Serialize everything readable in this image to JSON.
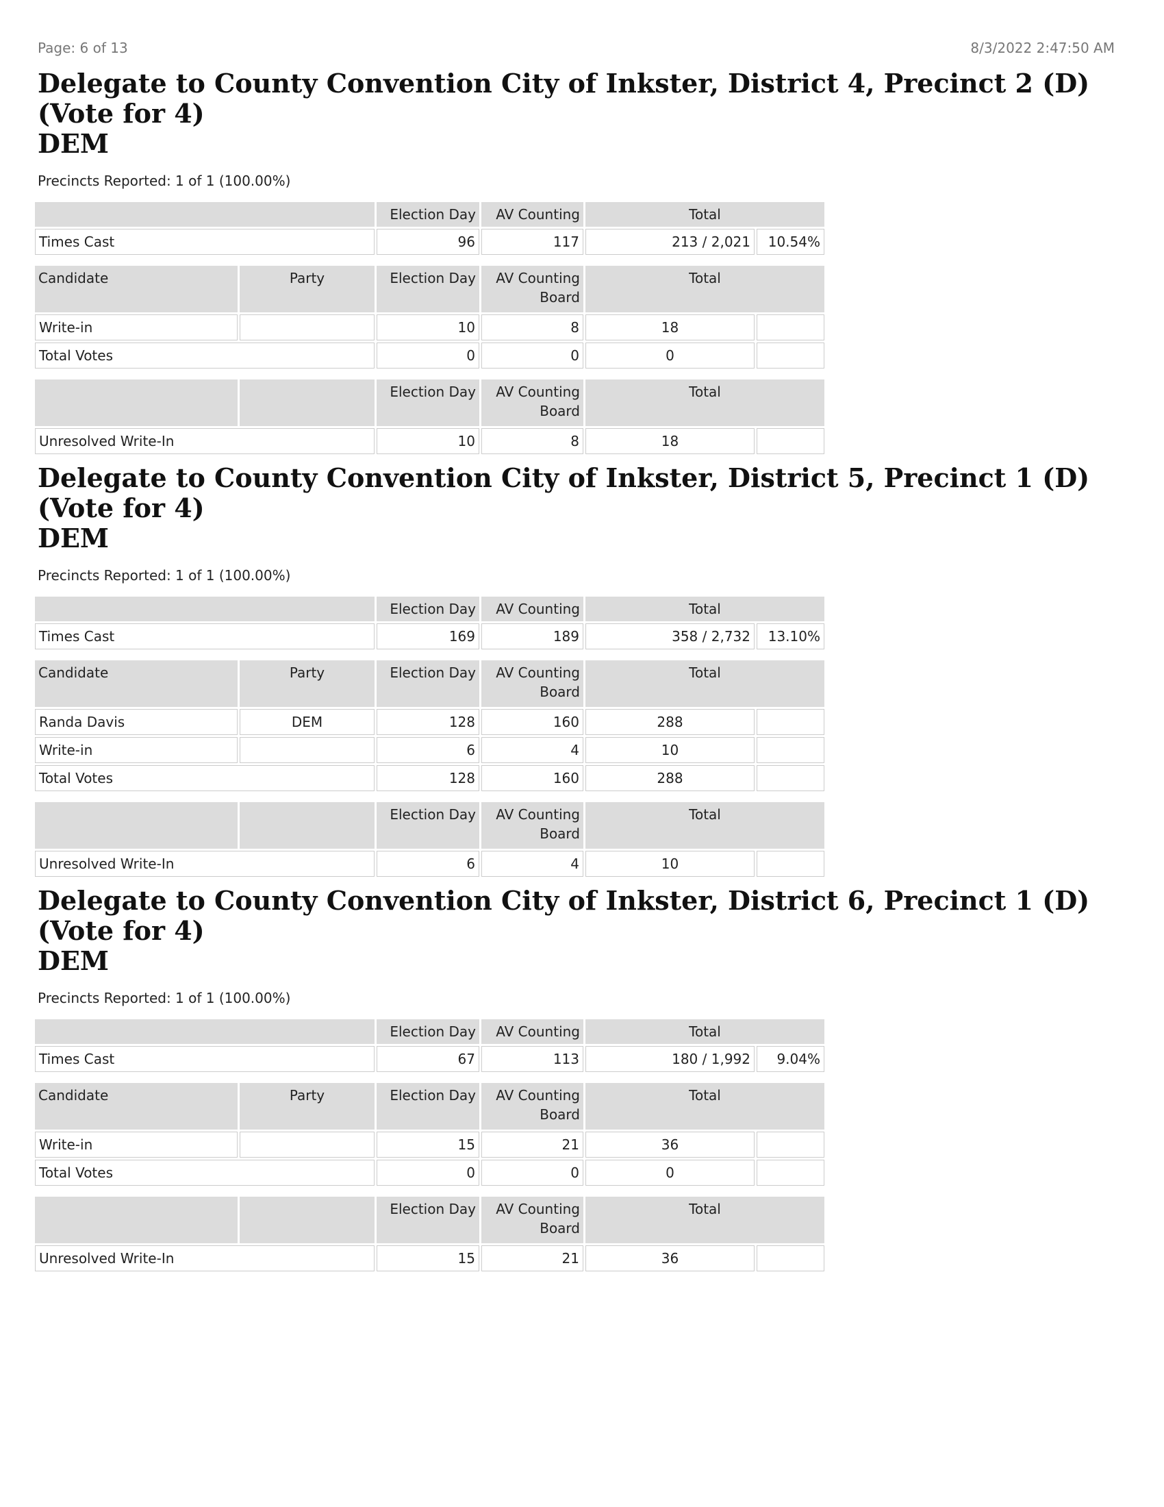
{
  "header": {
    "page": "Page: 6 of 13",
    "timestamp": "8/3/2022 2:47:50 AM"
  },
  "sections": [
    {
      "title": "Delegate to County Convention City of Inkster, District 4, Precinct 2 (D) (Vote for  4)",
      "party": "DEM",
      "precincts": "Precincts Reported: 1 of 1 (100.00%)",
      "times_cast": {
        "columns": [
          "Election Day",
          "AV Counting",
          "Total"
        ],
        "label": "Times Cast",
        "election_day": "96",
        "av": "117",
        "total": "213 / 2,021",
        "percent": "10.54%"
      },
      "candidates": {
        "columns": [
          "Candidate",
          "Party",
          "Election Day",
          "AV Counting Board",
          "Total"
        ],
        "rows": [
          {
            "name": "Write-in",
            "election_day": "10",
            "av": "8",
            "total": "18"
          }
        ],
        "total": {
          "name": "Total Votes",
          "election_day": "0",
          "av": "0",
          "total": "0"
        }
      },
      "unresolved": {
        "columns": [
          "Election Day",
          "AV Counting Board",
          "Total"
        ],
        "name": "Unresolved Write-In",
        "election_day": "10",
        "av": "8",
        "total": "18"
      }
    },
    {
      "title": "Delegate to County Convention City of Inkster, District 5, Precinct 1 (D) (Vote for  4)",
      "party": "DEM",
      "precincts": "Precincts Reported: 1 of 1 (100.00%)",
      "times_cast": {
        "columns": [
          "Election Day",
          "AV Counting",
          "Total"
        ],
        "label": "Times Cast",
        "election_day": "169",
        "av": "189",
        "total": "358 / 2,732",
        "percent": "13.10%"
      },
      "candidates": {
        "columns": [
          "Candidate",
          "Party",
          "Election Day",
          "AV Counting Board",
          "Total"
        ],
        "rows": [
          {
            "name": "Randa Davis",
            "party": "DEM",
            "election_day": "128",
            "av": "160",
            "total": "288"
          },
          {
            "name": "Write-in",
            "election_day": "6",
            "av": "4",
            "total": "10"
          }
        ],
        "total": {
          "name": "Total Votes",
          "election_day": "128",
          "av": "160",
          "total": "288"
        }
      },
      "unresolved": {
        "columns": [
          "Election Day",
          "AV Counting Board",
          "Total"
        ],
        "name": "Unresolved Write-In",
        "election_day": "6",
        "av": "4",
        "total": "10"
      }
    },
    {
      "title": "Delegate to County Convention City of Inkster, District 6, Precinct 1 (D) (Vote for  4)",
      "party": "DEM",
      "precincts": "Precincts Reported: 1 of 1 (100.00%)",
      "times_cast": {
        "columns": [
          "Election Day",
          "AV Counting",
          "Total"
        ],
        "label": "Times Cast",
        "election_day": "67",
        "av": "113",
        "total": "180 / 1,992",
        "percent": "9.04%"
      },
      "candidates": {
        "columns": [
          "Candidate",
          "Party",
          "Election Day",
          "AV Counting Board",
          "Total"
        ],
        "rows": [
          {
            "name": "Write-in",
            "election_day": "15",
            "av": "21",
            "total": "36"
          }
        ],
        "total": {
          "name": "Total Votes",
          "election_day": "0",
          "av": "0",
          "total": "0"
        }
      },
      "unresolved": {
        "columns": [
          "Election Day",
          "AV Counting Board",
          "Total"
        ],
        "name": "Unresolved Write-In",
        "election_day": "15",
        "av": "21",
        "total": "36"
      }
    }
  ]
}
